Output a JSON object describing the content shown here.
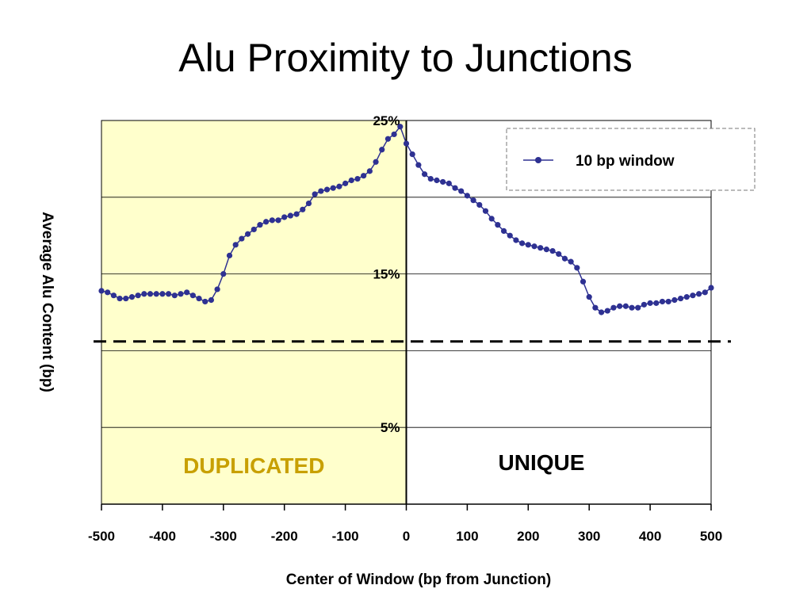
{
  "title": "Alu Proximity to Junctions",
  "colors": {
    "series": "#2e3192",
    "duplicated_bg": "#ffffcc",
    "duplicated_text": "#c8a000",
    "grid": "#000000"
  },
  "chart_data": {
    "type": "line",
    "title": "Alu Proximity to Junctions",
    "xlabel": "Center of Window (bp from Junction)",
    "ylabel": "Average Alu Content (bp)",
    "xlim": [
      -500,
      500
    ],
    "ylim": [
      0,
      25
    ],
    "x_ticks": [
      "-500",
      "-400",
      "-300",
      "-200",
      "-100",
      "0",
      "100",
      "200",
      "300",
      "400",
      "500"
    ],
    "y_tick_labels": [
      {
        "value": 25,
        "label": "25%"
      },
      {
        "value": 15,
        "label": "15%"
      },
      {
        "value": 5,
        "label": "5%"
      }
    ],
    "gridlines_y": [
      5,
      10,
      15,
      20,
      25
    ],
    "grid": true,
    "legend_position": "top-right",
    "baseline": {
      "value": 10.6,
      "style": "dashed"
    },
    "regions": [
      {
        "label": "DUPLICATED",
        "x_from": -500,
        "x_to": 0
      },
      {
        "label": "UNIQUE",
        "x_from": 0,
        "x_to": 500
      }
    ],
    "series": [
      {
        "name": "10 bp window",
        "x": [
          -500,
          -490,
          -480,
          -470,
          -460,
          -450,
          -440,
          -430,
          -420,
          -410,
          -400,
          -390,
          -380,
          -370,
          -360,
          -350,
          -340,
          -330,
          -320,
          -310,
          -300,
          -290,
          -280,
          -270,
          -260,
          -250,
          -240,
          -230,
          -220,
          -210,
          -200,
          -190,
          -180,
          -170,
          -160,
          -150,
          -140,
          -130,
          -120,
          -110,
          -100,
          -90,
          -80,
          -70,
          -60,
          -50,
          -40,
          -30,
          -20,
          -10,
          0,
          10,
          20,
          30,
          40,
          50,
          60,
          70,
          80,
          90,
          100,
          110,
          120,
          130,
          140,
          150,
          160,
          170,
          180,
          190,
          200,
          210,
          220,
          230,
          240,
          250,
          260,
          270,
          280,
          290,
          300,
          310,
          320,
          330,
          340,
          350,
          360,
          370,
          380,
          390,
          400,
          410,
          420,
          430,
          440,
          450,
          460,
          470,
          480,
          490,
          500
        ],
        "y": [
          13.9,
          13.8,
          13.6,
          13.4,
          13.4,
          13.5,
          13.6,
          13.7,
          13.7,
          13.7,
          13.7,
          13.7,
          13.6,
          13.7,
          13.8,
          13.6,
          13.4,
          13.2,
          13.3,
          14.0,
          15.0,
          16.2,
          16.9,
          17.3,
          17.6,
          17.9,
          18.2,
          18.4,
          18.5,
          18.5,
          18.7,
          18.8,
          18.9,
          19.2,
          19.6,
          20.2,
          20.4,
          20.5,
          20.6,
          20.7,
          20.9,
          21.1,
          21.2,
          21.4,
          21.7,
          22.3,
          23.1,
          23.8,
          24.1,
          24.6,
          23.5,
          22.8,
          22.1,
          21.5,
          21.2,
          21.1,
          21.0,
          20.9,
          20.6,
          20.4,
          20.1,
          19.8,
          19.5,
          19.1,
          18.6,
          18.2,
          17.8,
          17.5,
          17.2,
          17.0,
          16.9,
          16.8,
          16.7,
          16.6,
          16.5,
          16.3,
          16.0,
          15.8,
          15.4,
          14.5,
          13.5,
          12.8,
          12.5,
          12.6,
          12.8,
          12.9,
          12.9,
          12.8,
          12.8,
          13.0,
          13.1,
          13.1,
          13.2,
          13.2,
          13.3,
          13.4,
          13.5,
          13.6,
          13.7,
          13.8,
          14.1
        ]
      }
    ]
  }
}
